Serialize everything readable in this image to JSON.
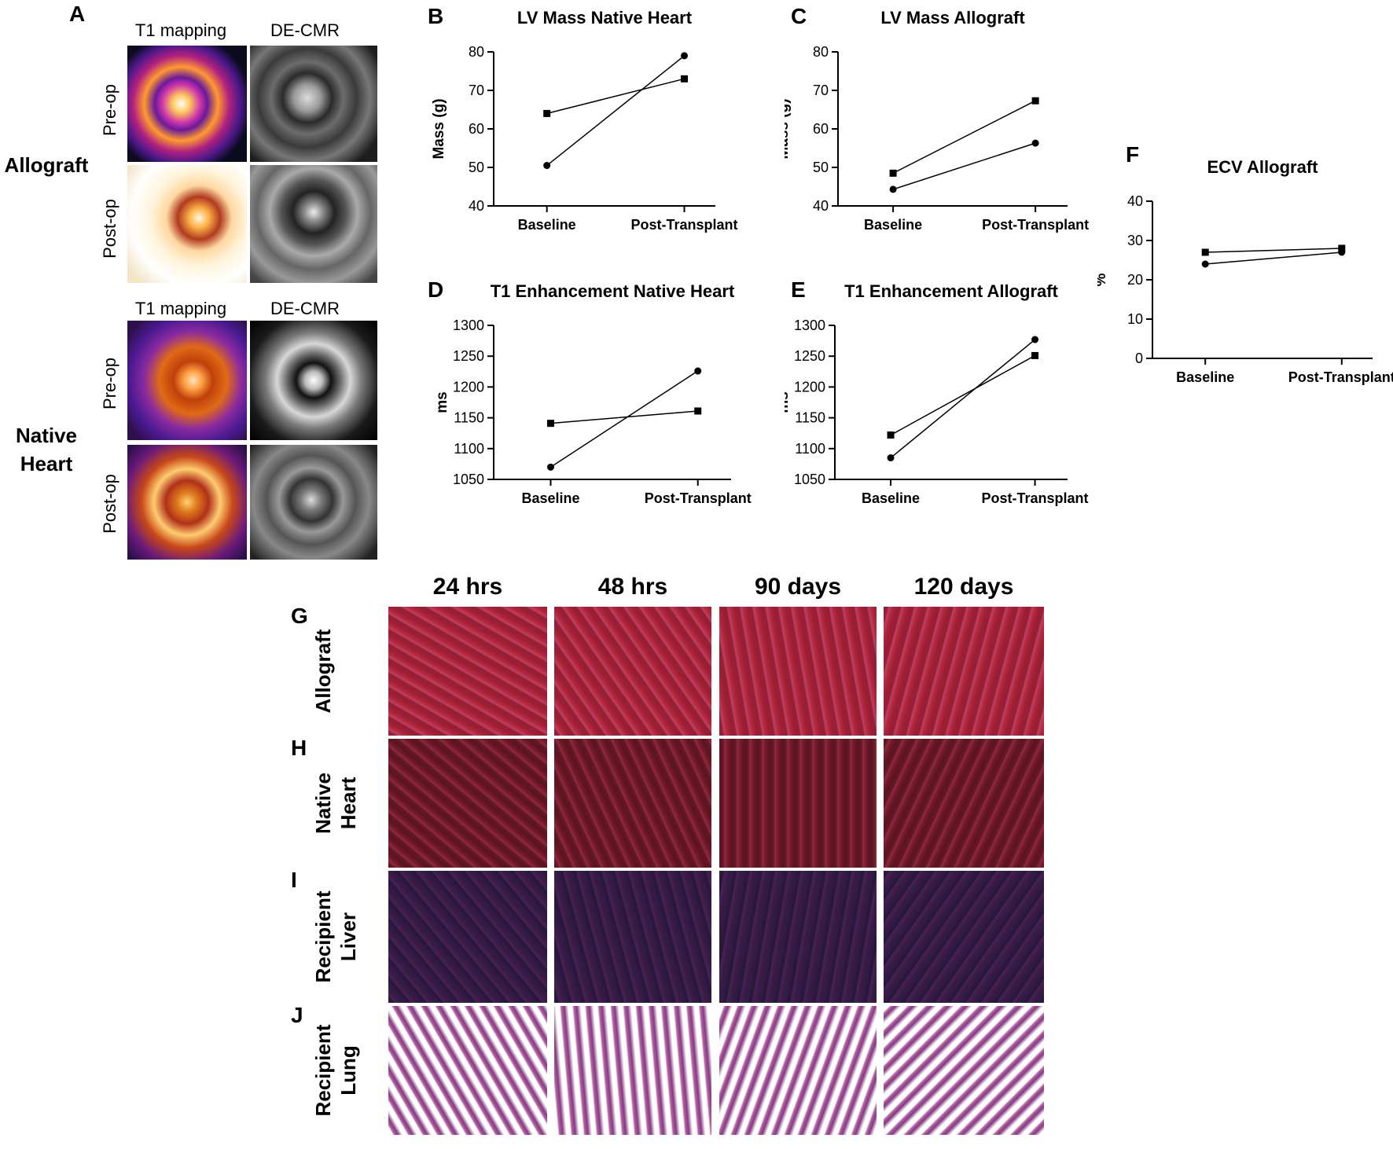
{
  "panelA": {
    "letter": "A",
    "col1": "T1 mapping",
    "col2": "DE-CMR",
    "row_pre": "Pre-op",
    "row_post": "Post-op",
    "group1": "Allograft",
    "group2_line1": "Native",
    "group2_line2": "Heart"
  },
  "histology": {
    "letters": [
      "G",
      "H",
      "I",
      "J"
    ],
    "columns": [
      "24 hrs",
      "48 hrs",
      "90 days",
      "120 days"
    ],
    "rows": [
      {
        "line1": "Allograft",
        "line2": ""
      },
      {
        "line1": "Native",
        "line2": "Heart"
      },
      {
        "line1": "Recipient",
        "line2": "Liver"
      },
      {
        "line1": "Recipient",
        "line2": "Lung"
      }
    ]
  },
  "colors": {
    "line": "#000000",
    "axis": "#000000"
  },
  "chart_data": [
    {
      "letter": "B",
      "type": "line",
      "title": "LV Mass Native Heart",
      "xlabel": "",
      "ylabel": "Mass (g)",
      "categories": [
        "Baseline",
        "Post-Transplant"
      ],
      "ylim": [
        40,
        80
      ],
      "yticks": [
        40,
        50,
        60,
        70,
        80
      ],
      "series": [
        {
          "marker": "square",
          "values": [
            64,
            73
          ]
        },
        {
          "marker": "circle",
          "values": [
            50.5,
            79
          ]
        }
      ]
    },
    {
      "letter": "C",
      "type": "line",
      "title": "LV Mass Allograft",
      "xlabel": "",
      "ylabel": "Mass (g)",
      "categories": [
        "Baseline",
        "Post-Transplant"
      ],
      "ylim": [
        40,
        80
      ],
      "yticks": [
        40,
        50,
        60,
        70,
        80
      ],
      "series": [
        {
          "marker": "square",
          "values": [
            48.5,
            67.3
          ]
        },
        {
          "marker": "circle",
          "values": [
            44.3,
            56.3
          ]
        }
      ]
    },
    {
      "letter": "D",
      "type": "line",
      "title": "T1 Enhancement Native Heart",
      "xlabel": "",
      "ylabel": "ms",
      "categories": [
        "Baseline",
        "Post-Transplant"
      ],
      "ylim": [
        1050,
        1300
      ],
      "yticks": [
        1050,
        1100,
        1150,
        1200,
        1250,
        1300
      ],
      "series": [
        {
          "marker": "square",
          "values": [
            1141,
            1161
          ]
        },
        {
          "marker": "circle",
          "values": [
            1070,
            1226
          ]
        }
      ]
    },
    {
      "letter": "E",
      "type": "line",
      "title": "T1 Enhancement Allograft",
      "xlabel": "",
      "ylabel": "ms",
      "categories": [
        "Baseline",
        "Post-Transplant"
      ],
      "ylim": [
        1050,
        1300
      ],
      "yticks": [
        1050,
        1100,
        1150,
        1200,
        1250,
        1300
      ],
      "series": [
        {
          "marker": "square",
          "values": [
            1122,
            1251
          ]
        },
        {
          "marker": "circle",
          "values": [
            1085,
            1277
          ]
        }
      ]
    },
    {
      "letter": "F",
      "type": "line",
      "title": "ECV Allograft",
      "xlabel": "",
      "ylabel": "%",
      "categories": [
        "Baseline",
        "Post-Transplant"
      ],
      "ylim": [
        0,
        40
      ],
      "yticks": [
        0,
        10,
        20,
        30,
        40
      ],
      "series": [
        {
          "marker": "square",
          "values": [
            27,
            28
          ]
        },
        {
          "marker": "circle",
          "values": [
            24,
            27
          ]
        }
      ]
    }
  ]
}
